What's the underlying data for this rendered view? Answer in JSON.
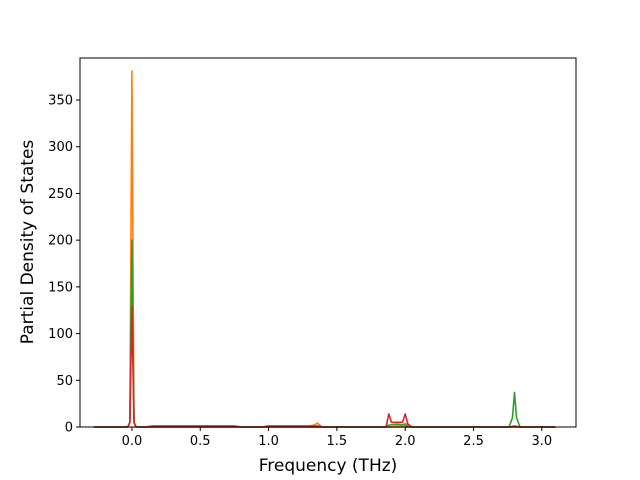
{
  "chart_data": {
    "type": "line",
    "title": "",
    "xlabel": "Frequency (THz)",
    "ylabel": "Partial Density of States",
    "xlim": [
      -0.38,
      3.25
    ],
    "ylim": [
      0,
      395
    ],
    "xticks": [
      0.0,
      0.5,
      1.0,
      1.5,
      2.0,
      2.5,
      3.0
    ],
    "xtick_labels": [
      "0.0",
      "0.5",
      "1.0",
      "1.5",
      "2.0",
      "2.5",
      "3.0"
    ],
    "yticks": [
      0,
      50,
      100,
      150,
      200,
      250,
      300,
      350
    ],
    "ytick_labels": [
      "0",
      "50",
      "100",
      "150",
      "200",
      "250",
      "300",
      "350"
    ],
    "grid": false,
    "legend": "none",
    "series": [
      {
        "color": "#1f77b4",
        "x": [
          -0.28,
          -0.03,
          -0.015,
          0.0,
          0.015,
          0.03,
          3.1
        ],
        "y": [
          0,
          0,
          5,
          170,
          5,
          0,
          0
        ]
      },
      {
        "color": "#ff7f0e",
        "x": [
          -0.28,
          -0.03,
          -0.015,
          0.0,
          0.015,
          0.03,
          0.1,
          0.15,
          0.6,
          0.75,
          0.8,
          0.95,
          1.0,
          1.3,
          1.33,
          1.36,
          1.39,
          1.45,
          1.9,
          1.93,
          1.97,
          2.0,
          2.05,
          3.1
        ],
        "y": [
          0,
          0,
          5,
          381,
          5,
          0,
          0,
          1,
          1,
          1,
          0,
          0,
          1,
          1,
          2,
          4,
          0,
          0,
          0,
          1,
          1,
          4,
          0,
          0
        ]
      },
      {
        "color": "#2ca02c",
        "x": [
          -0.28,
          -0.03,
          -0.015,
          0.0,
          0.015,
          0.03,
          1.85,
          1.88,
          1.94,
          2.0,
          2.03,
          2.7,
          2.76,
          2.785,
          2.8,
          2.815,
          2.84,
          3.1
        ],
        "y": [
          0,
          0,
          5,
          200,
          5,
          0,
          0,
          2,
          3,
          2,
          0,
          0,
          0,
          10,
          37,
          10,
          0,
          0
        ]
      },
      {
        "color": "#d62728",
        "x": [
          -0.28,
          -0.03,
          -0.015,
          0.0,
          0.015,
          0.03,
          0.1,
          0.15,
          0.7,
          0.75,
          0.8,
          0.95,
          1.0,
          1.3,
          1.36,
          1.4,
          1.86,
          1.88,
          1.9,
          1.95,
          1.98,
          2.0,
          2.02,
          2.05,
          2.7,
          2.76,
          2.8,
          2.84,
          3.1
        ],
        "y": [
          0,
          0,
          5,
          129,
          5,
          0,
          0,
          1,
          1,
          1,
          0,
          0,
          1,
          1,
          1,
          0,
          0,
          14,
          5,
          5,
          5,
          14,
          3,
          0,
          0,
          0,
          1,
          0,
          0
        ]
      }
    ]
  }
}
